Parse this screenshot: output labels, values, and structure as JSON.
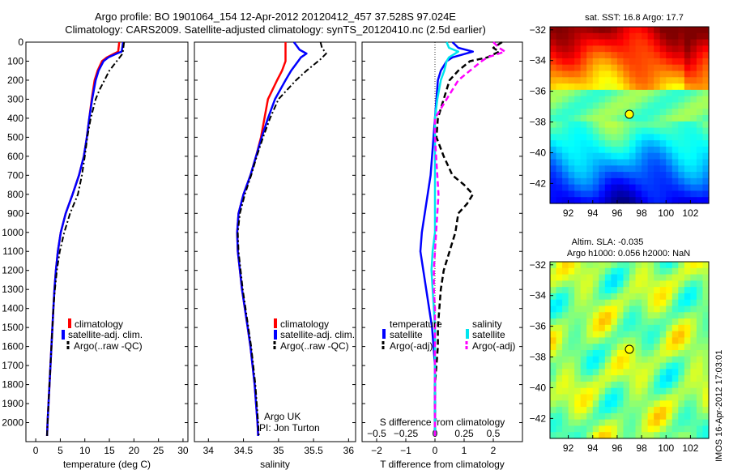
{
  "titles": {
    "line1": "Argo profile: BO 1901064_154 12-Apr-2012 20120412_457 37.528S 97.024E",
    "line2": "Climatology: CARS2009. Satellite-adjusted climatology: synTS_20120410.nc (2.5d earlier)"
  },
  "map_top_title": "sat. SST: 16.8 Argo: 17.7",
  "map_bottom_title1": "Altim. SLA: -0.035",
  "map_bottom_title2": "Argo h1000: 0.056 h2000: NaN",
  "stamp": "IMOS 16-Apr-2012 17:03:01",
  "credit": {
    "line1": "Argo UK",
    "line2": "PI: Jon Turton"
  },
  "legend": {
    "climatology": "climatology",
    "satellite": "satellite-adj. clim.",
    "argo": "Argo(..raw -QC)",
    "diff_temp_head": "temperature",
    "diff_sal_head": "salinity",
    "diff_satellite": "satellite",
    "diff_argo": "Argo(-adj)"
  },
  "colors": {
    "climatology": "#ff0000",
    "satellite": "#0000ff",
    "argo": "#000000",
    "salinity_sat": "#00e5ee",
    "salinity_argo": "#ff00ff"
  },
  "chart_data": [
    {
      "type": "line",
      "xlabel": "temperature (deg C)",
      "ylabel": "",
      "xlim": [
        -2,
        31
      ],
      "ylim": [
        2100,
        0
      ],
      "xticks": [
        0,
        5,
        10,
        15,
        20,
        25,
        30
      ],
      "yticks": [
        0,
        100,
        200,
        300,
        400,
        500,
        600,
        700,
        800,
        900,
        1000,
        1100,
        1200,
        1300,
        1400,
        1500,
        1600,
        1700,
        1800,
        1900,
        2000
      ],
      "series": [
        {
          "name": "climatology",
          "depth": [
            0,
            50,
            60,
            80,
            100,
            150,
            200,
            300,
            400,
            500,
            600,
            700,
            800,
            900,
            1000,
            1100,
            1200,
            1300,
            1400,
            1500,
            1600,
            1700,
            1800,
            1900,
            2000,
            2070
          ],
          "values": [
            17.0,
            16.8,
            16.0,
            14.5,
            13.5,
            12.6,
            12.0,
            11.4,
            10.9,
            10.4,
            9.8,
            8.8,
            7.5,
            6.1,
            5.1,
            4.5,
            4.1,
            3.8,
            3.6,
            3.4,
            3.2,
            3.0,
            2.8,
            2.6,
            2.4,
            2.3
          ]
        },
        {
          "name": "satellite-adj. clim.",
          "depth": [
            0,
            50,
            60,
            80,
            100,
            150,
            200,
            300,
            400,
            500,
            600,
            700,
            800,
            900,
            1000,
            1100,
            1200,
            1300,
            1400,
            1500,
            1600,
            1700,
            1800,
            1900,
            2000,
            2070
          ],
          "values": [
            17.8,
            17.5,
            16.5,
            14.8,
            13.8,
            12.8,
            12.2,
            11.5,
            10.9,
            10.4,
            9.8,
            8.8,
            7.5,
            6.1,
            5.1,
            4.5,
            4.1,
            3.8,
            3.6,
            3.4,
            3.2,
            3.0,
            2.8,
            2.6,
            2.4,
            2.3
          ]
        },
        {
          "name": "Argo(..raw -QC)",
          "depth": [
            0,
            60,
            100,
            150,
            200,
            250,
            300,
            400,
            500,
            600,
            700,
            800,
            900,
            1000,
            1100,
            1200,
            1300,
            1400,
            1500,
            1600,
            1700,
            1800,
            1900,
            2000,
            2070
          ],
          "values": [
            18.0,
            17.7,
            16.5,
            15.0,
            14.0,
            13.0,
            12.2,
            11.2,
            10.5,
            10.0,
            9.4,
            8.6,
            7.0,
            5.8,
            4.9,
            4.3,
            3.9,
            3.6,
            3.4,
            3.2,
            3.0,
            2.8,
            2.6,
            2.4,
            2.3
          ]
        }
      ]
    },
    {
      "type": "line",
      "xlabel": "salinity",
      "ylabel": "",
      "xlim": [
        33.8,
        36.1
      ],
      "ylim": [
        2100,
        0
      ],
      "xticks": [
        34,
        34.5,
        35,
        35.5,
        36
      ],
      "series": [
        {
          "name": "climatology",
          "depth": [
            0,
            50,
            100,
            150,
            200,
            300,
            400,
            500,
            600,
            700,
            800,
            900,
            1000,
            1100,
            1200,
            1300,
            1400,
            1500,
            1600,
            1700,
            1800,
            1900,
            2000,
            2070
          ],
          "values": [
            35.1,
            35.1,
            35.1,
            35.05,
            34.98,
            34.85,
            34.8,
            34.75,
            34.68,
            34.6,
            34.5,
            34.43,
            34.41,
            34.42,
            34.45,
            34.48,
            34.52,
            34.56,
            34.6,
            34.63,
            34.66,
            34.68,
            34.7,
            34.71
          ]
        },
        {
          "name": "satellite-adj. clim.",
          "depth": [
            0,
            40,
            60,
            80,
            100,
            150,
            200,
            300,
            400,
            500,
            600,
            700,
            800,
            900,
            1000,
            1100,
            1200,
            1300,
            1400,
            1500,
            1600,
            1700,
            1800,
            1900,
            2000,
            2070
          ],
          "values": [
            35.22,
            35.3,
            35.4,
            35.32,
            35.28,
            35.18,
            35.1,
            34.95,
            34.85,
            34.76,
            34.68,
            34.6,
            34.5,
            34.43,
            34.41,
            34.42,
            34.45,
            34.48,
            34.52,
            34.56,
            34.6,
            34.63,
            34.66,
            34.68,
            34.7,
            34.71
          ]
        },
        {
          "name": "Argo(..raw -QC)",
          "depth": [
            0,
            30,
            60,
            90,
            120,
            150,
            200,
            300,
            400,
            500,
            600,
            700,
            800,
            900,
            1000,
            1100,
            1200,
            1300,
            1400,
            1500,
            1600,
            1700,
            1800,
            1900,
            2000,
            2070
          ],
          "values": [
            35.6,
            35.62,
            35.68,
            35.6,
            35.5,
            35.4,
            35.25,
            35.0,
            34.88,
            34.78,
            34.69,
            34.61,
            34.52,
            34.45,
            34.42,
            34.43,
            34.46,
            34.49,
            34.53,
            34.57,
            34.61,
            34.64,
            34.67,
            34.69,
            34.71,
            34.72
          ]
        }
      ]
    },
    {
      "type": "line",
      "xlabel": "T difference from climatology",
      "xlabel2": "S difference from climatology",
      "xlim": [
        -2.5,
        3
      ],
      "ylim": [
        2100,
        0
      ],
      "xticks": [
        -2,
        -1,
        0,
        1,
        2
      ],
      "xticks_top": [
        -0.5,
        -0.25,
        0,
        0.25,
        0.5
      ],
      "zero_line": true,
      "series": [
        {
          "name": "temperature satellite",
          "depth": [
            0,
            30,
            50,
            80,
            100,
            150,
            200,
            300,
            400,
            500,
            600,
            700,
            800,
            900,
            1000,
            1100,
            1200,
            1300,
            1400,
            1500,
            1600,
            1700,
            1800,
            1900,
            2000,
            2070
          ],
          "values": [
            0.6,
            0.8,
            1.3,
            0.6,
            0.4,
            0.2,
            0.1,
            0.05,
            0.0,
            -0.05,
            -0.1,
            -0.15,
            -0.25,
            -0.35,
            -0.45,
            -0.5,
            -0.4,
            -0.3,
            -0.2,
            -0.1,
            -0.05,
            0.0,
            0.0,
            0.0,
            0.0,
            0.0
          ]
        },
        {
          "name": "temperature Argo(-adj)",
          "depth": [
            0,
            30,
            50,
            80,
            100,
            150,
            200,
            300,
            400,
            500,
            600,
            700,
            750,
            800,
            850,
            900,
            1000,
            1100,
            1200,
            1300,
            1400,
            1500,
            1600,
            1700,
            1800,
            1900,
            2000,
            2070
          ],
          "values": [
            2.3,
            2.0,
            2.2,
            1.8,
            1.2,
            0.8,
            0.5,
            0.3,
            0.1,
            0.05,
            0.3,
            0.6,
            1.0,
            1.3,
            1.1,
            0.8,
            0.7,
            0.5,
            0.3,
            0.2,
            0.15,
            0.1,
            0.1,
            0.05,
            0.0,
            0.0,
            0.0,
            0.0
          ]
        },
        {
          "name": "salinity satellite",
          "depth": [
            0,
            30,
            50,
            80,
            100,
            150,
            200,
            300,
            400,
            500,
            600,
            700,
            800,
            900,
            1000,
            1100,
            1200,
            1300,
            1400,
            1500,
            1600,
            1700,
            1800,
            1900,
            2000,
            2070
          ],
          "values": [
            0.1,
            0.12,
            0.2,
            0.12,
            0.1,
            0.08,
            0.05,
            0.02,
            0.0,
            0.0,
            0.0,
            0.0,
            0.0,
            0.0,
            0.0,
            -0.02,
            -0.03,
            -0.02,
            -0.01,
            0.0,
            0.0,
            0.0,
            0.0,
            0.0,
            0.0,
            0.0
          ]
        },
        {
          "name": "salinity Argo(-adj)",
          "depth": [
            0,
            30,
            50,
            80,
            100,
            150,
            200,
            300,
            400,
            500,
            600,
            700,
            800,
            900,
            1000,
            1100,
            1200,
            1300,
            1400,
            1500,
            1600,
            1700,
            1800,
            1900,
            2000,
            2070
          ],
          "values": [
            0.5,
            0.55,
            0.6,
            0.45,
            0.4,
            0.3,
            0.2,
            0.1,
            0.0,
            0.0,
            0.01,
            0.02,
            0.03,
            0.02,
            0.01,
            0.0,
            -0.01,
            -0.01,
            0.0,
            0.0,
            0.0,
            0.0,
            0.0,
            0.0,
            0.0,
            0.0
          ]
        }
      ]
    },
    {
      "type": "heatmap",
      "title": "sat. SST: 16.8 Argo: 17.7",
      "xlim": [
        90.5,
        103.5
      ],
      "ylim": [
        -43.3,
        -31.8
      ],
      "xticks": [
        92,
        94,
        96,
        98,
        100,
        102
      ],
      "yticks": [
        -32,
        -34,
        -36,
        -38,
        -40,
        -42
      ],
      "marker": {
        "lon": 97.0,
        "lat": -37.5
      }
    },
    {
      "type": "heatmap",
      "title": "Altim. SLA: -0.035",
      "xlim": [
        90.5,
        103.5
      ],
      "ylim": [
        -43.3,
        -31.8
      ],
      "xticks": [
        92,
        94,
        96,
        98,
        100,
        102
      ],
      "yticks": [
        -32,
        -34,
        -36,
        -38,
        -40,
        -42
      ],
      "marker": {
        "lon": 97.0,
        "lat": -37.5
      }
    }
  ]
}
